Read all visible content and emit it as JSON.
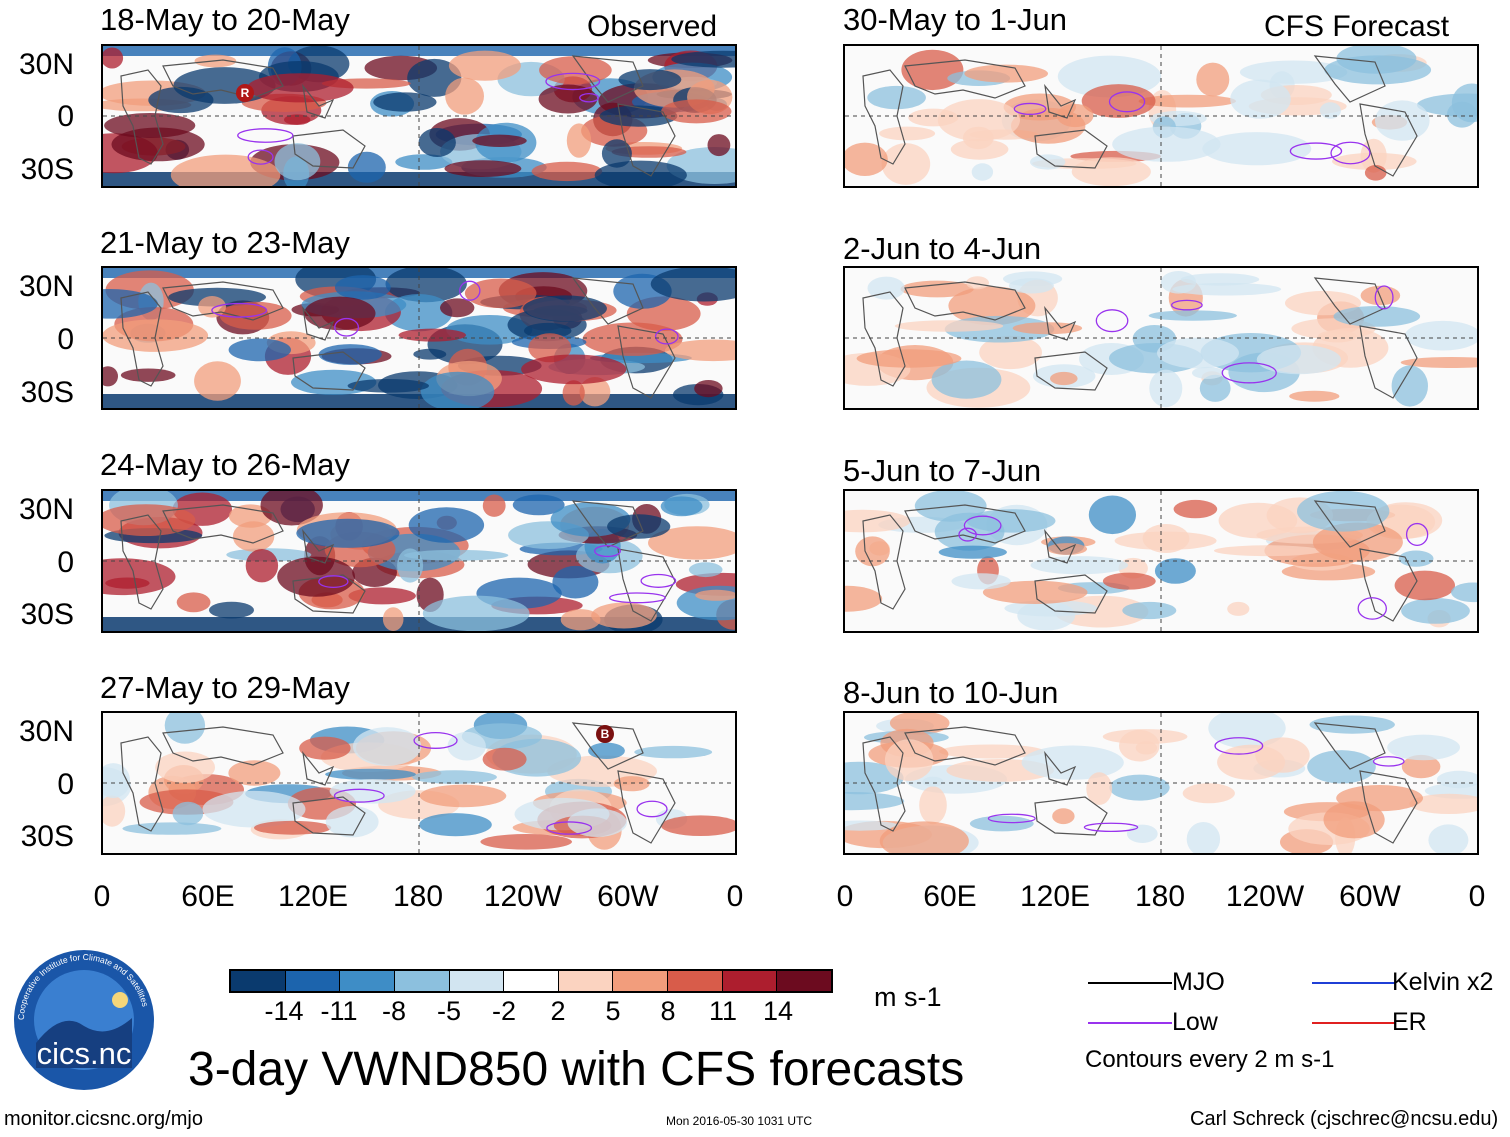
{
  "observed": {
    "header": "Observed",
    "panels": [
      {
        "title": "18-May to 20-May",
        "marker": "R"
      },
      {
        "title": "21-May to 23-May",
        "marker": ""
      },
      {
        "title": "24-May to 26-May",
        "marker": ""
      },
      {
        "title": "27-May to 29-May",
        "marker": "B"
      }
    ]
  },
  "forecast": {
    "header": "CFS Forecast",
    "panels": [
      {
        "title": "30-May to 1-Jun"
      },
      {
        "title": "2-Jun to 4-Jun"
      },
      {
        "title": "5-Jun to 7-Jun"
      },
      {
        "title": "8-Jun to 10-Jun"
      }
    ]
  },
  "lat_labels": [
    "30N",
    "0",
    "30S"
  ],
  "lon_labels": [
    "0",
    "60E",
    "120E",
    "180",
    "120W",
    "60W",
    "0"
  ],
  "colorbar": {
    "labels": [
      "-14",
      "-11",
      "-8",
      "-5",
      "-2",
      "2",
      "5",
      "8",
      "11",
      "14"
    ],
    "colors": [
      "#0a3a6e",
      "#1c64ad",
      "#3e8dc6",
      "#8cc0de",
      "#d2e5f1",
      "#ffffff",
      "#fbd3c0",
      "#f29d7c",
      "#d85c4a",
      "#ad1e2e",
      "#6c0b1f"
    ],
    "units": "m s-1"
  },
  "legend": {
    "items": [
      {
        "label": "MJO",
        "color": "#000000"
      },
      {
        "label": "Low",
        "color": "#9933ee"
      },
      {
        "label": "Kelvin x2",
        "color": "#1f3fd6"
      },
      {
        "label": "ER",
        "color": "#e02020"
      }
    ],
    "contour_note": "Contours every 2 m s-1"
  },
  "logo_text": "cics.nc",
  "logo_ring": "Cooperative Institute for Climate and Satellites",
  "main_title": "3-day VWND850 with CFS forecasts",
  "footer": {
    "url": "monitor.cicsnc.org/mjo",
    "timestamp": "Mon 2016-05-30 1031 UTC",
    "author": "Carl Schreck (cjschrec@ncsu.edu)"
  }
}
